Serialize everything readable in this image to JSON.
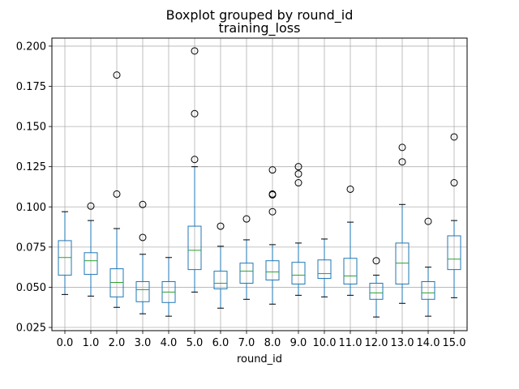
{
  "chart_data": {
    "type": "boxplot",
    "suptitle": "Boxplot grouped by round_id",
    "title": "training_loss",
    "xlabel": "round_id",
    "ylabel": "",
    "ylim": [
      0.023,
      0.205
    ],
    "yticks": [
      "0.025",
      "0.050",
      "0.075",
      "0.100",
      "0.125",
      "0.150",
      "0.175",
      "0.200"
    ],
    "grid": true,
    "colors": {
      "box": "#1f77b4",
      "median": "#2ca02c",
      "whisker": "#000000",
      "grid": "#b0b0b0",
      "flier": "#000000"
    },
    "groups": [
      {
        "label": "0.0",
        "whislo": 0.0455,
        "q1": 0.0575,
        "med": 0.0685,
        "q3": 0.079,
        "whishi": 0.097,
        "fliers": []
      },
      {
        "label": "1.0",
        "whislo": 0.0445,
        "q1": 0.058,
        "med": 0.0665,
        "q3": 0.0715,
        "whishi": 0.0915,
        "fliers": [
          0.1005
        ]
      },
      {
        "label": "2.0",
        "whislo": 0.0375,
        "q1": 0.044,
        "med": 0.053,
        "q3": 0.0615,
        "whishi": 0.0865,
        "fliers": [
          0.108,
          0.182
        ]
      },
      {
        "label": "3.0",
        "whislo": 0.0335,
        "q1": 0.041,
        "med": 0.0485,
        "q3": 0.0535,
        "whishi": 0.0705,
        "fliers": [
          0.081,
          0.1015
        ]
      },
      {
        "label": "4.0",
        "whislo": 0.032,
        "q1": 0.0405,
        "med": 0.047,
        "q3": 0.0535,
        "whishi": 0.0685,
        "fliers": []
      },
      {
        "label": "5.0",
        "whislo": 0.047,
        "q1": 0.061,
        "med": 0.073,
        "q3": 0.088,
        "whishi": 0.125,
        "fliers": [
          0.1295,
          0.158,
          0.197
        ]
      },
      {
        "label": "6.0",
        "whislo": 0.037,
        "q1": 0.049,
        "med": 0.0525,
        "q3": 0.06,
        "whishi": 0.0755,
        "fliers": [
          0.088
        ]
      },
      {
        "label": "7.0",
        "whislo": 0.0425,
        "q1": 0.0525,
        "med": 0.06,
        "q3": 0.065,
        "whishi": 0.0795,
        "fliers": [
          0.0925
        ]
      },
      {
        "label": "8.0",
        "whislo": 0.0395,
        "q1": 0.0545,
        "med": 0.0595,
        "q3": 0.0665,
        "whishi": 0.0765,
        "fliers": [
          0.097,
          0.1075,
          0.108,
          0.123
        ]
      },
      {
        "label": "9.0",
        "whislo": 0.045,
        "q1": 0.052,
        "med": 0.0575,
        "q3": 0.0655,
        "whishi": 0.0775,
        "fliers": [
          0.115,
          0.1205,
          0.125
        ]
      },
      {
        "label": "10.0",
        "whislo": 0.044,
        "q1": 0.0555,
        "med": 0.0585,
        "q3": 0.067,
        "whishi": 0.08,
        "fliers": []
      },
      {
        "label": "11.0",
        "whislo": 0.045,
        "q1": 0.052,
        "med": 0.057,
        "q3": 0.068,
        "whishi": 0.0905,
        "fliers": [
          0.111
        ]
      },
      {
        "label": "12.0",
        "whislo": 0.0315,
        "q1": 0.0425,
        "med": 0.0465,
        "q3": 0.0525,
        "whishi": 0.0575,
        "fliers": [
          0.0665
        ]
      },
      {
        "label": "13.0",
        "whislo": 0.04,
        "q1": 0.052,
        "med": 0.065,
        "q3": 0.0775,
        "whishi": 0.1015,
        "fliers": [
          0.128,
          0.137
        ]
      },
      {
        "label": "14.0",
        "whislo": 0.032,
        "q1": 0.0425,
        "med": 0.0465,
        "q3": 0.0535,
        "whishi": 0.0625,
        "fliers": [
          0.091
        ]
      },
      {
        "label": "15.0",
        "whislo": 0.0435,
        "q1": 0.061,
        "med": 0.0675,
        "q3": 0.082,
        "whishi": 0.0915,
        "fliers": [
          0.115,
          0.1435
        ]
      }
    ]
  }
}
